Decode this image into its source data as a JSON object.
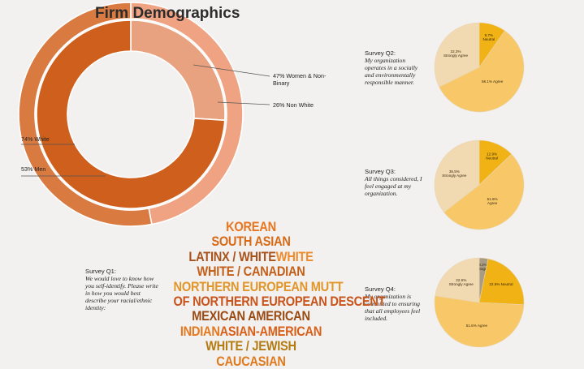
{
  "page": {
    "title": "Firm Demographics"
  },
  "colors": {
    "background": "#f2f1ef",
    "dark_orange": "#d97a40",
    "light_orange": "#efa382",
    "inner_dark": "#cf5f1c",
    "inner_light": "#e8a27f",
    "pie_dark": "#f0b214",
    "pie_mid": "#f8c868",
    "pie_light": "#f1d9b1",
    "pie_grey": "#a99c84",
    "leader": "#555555"
  },
  "chart_data": [
    {
      "type": "pie",
      "variant": "nested-donut",
      "title": "Firm Demographics",
      "rings": [
        {
          "name": "outer",
          "slices": [
            {
              "label": "47% Women & Non-Binary",
              "value": 47
            },
            {
              "label": "53% Men",
              "value": 53
            }
          ]
        },
        {
          "name": "inner",
          "slices": [
            {
              "label": "26% Non White",
              "value": 26
            },
            {
              "label": "74% White",
              "value": 74
            }
          ]
        }
      ]
    },
    {
      "type": "pie",
      "title": "Survey Q2:",
      "question": "My organization operates in a socially and environmentally responsible manner.",
      "slices": [
        {
          "label": "9.7%",
          "sub": "Neutral",
          "value": 9.7
        },
        {
          "label": "58.1% Agree",
          "sub": "",
          "value": 58.1
        },
        {
          "label": "32.3%",
          "sub": "Strongly Agree",
          "value": 32.3
        }
      ]
    },
    {
      "type": "pie",
      "title": "Survey Q3:",
      "question": "All things considered, I feel engaged at my organization.",
      "slices": [
        {
          "label": "12.9%",
          "sub": "Neutral",
          "value": 12.9
        },
        {
          "label": "51.6%",
          "sub": "Agree",
          "value": 51.6
        },
        {
          "label": "35.5%",
          "sub": "Strongly Agree",
          "value": 35.5
        }
      ]
    },
    {
      "type": "pie",
      "title": "Survey Q4:",
      "question": "My organization is committed to ensuring that all employees feel included.",
      "slices": [
        {
          "label": "3.2%",
          "sub": "Disagree",
          "value": 3.2
        },
        {
          "label": "22.6% Neutral",
          "sub": "",
          "value": 22.6
        },
        {
          "label": "51.6% Agree",
          "sub": "",
          "value": 51.6
        },
        {
          "label": "22.6%",
          "sub": "Strongly Agree",
          "value": 22.6
        }
      ]
    }
  ],
  "survey_q1": {
    "title": "Survey Q1:",
    "question": "We would love to know how you self-identify. Please write in how you would best describe your racial/ethnic identity:"
  },
  "word_cloud": [
    [
      {
        "text": "KOREAN",
        "color": "#e8751f",
        "size": 17
      }
    ],
    [
      {
        "text": "SOUTH ASIAN",
        "color": "#d86a17",
        "size": 17
      }
    ],
    [
      {
        "text": "LATINX / WHITE",
        "color": "#a8521c",
        "size": 17
      },
      {
        "text": "WHITE",
        "color": "#ef8a2a",
        "size": 17
      }
    ],
    [
      {
        "text": "WHITE / CANADIAN",
        "color": "#c45f1a",
        "size": 17
      }
    ],
    [
      {
        "text": "NORTHERN EUROPEAN MUTT",
        "color": "#e2962a",
        "size": 17
      }
    ],
    [
      {
        "text": "OF NORTHERN EUROPEAN DESCENT",
        "color": "#c9541b",
        "size": 17
      }
    ],
    [
      {
        "text": "MEXICAN AMERICAN",
        "color": "#9a4a12",
        "size": 17
      }
    ],
    [
      {
        "text": "INDIAN",
        "color": "#e6781e",
        "size": 17
      },
      {
        "text": "ASIAN-AMERICAN",
        "color": "#d9601a",
        "size": 17
      }
    ],
    [
      {
        "text": "WHITE / JEWISH",
        "color": "#b47b12",
        "size": 17
      }
    ],
    [
      {
        "text": "CAUCASIAN",
        "color": "#e07a1e",
        "size": 17
      }
    ]
  ]
}
